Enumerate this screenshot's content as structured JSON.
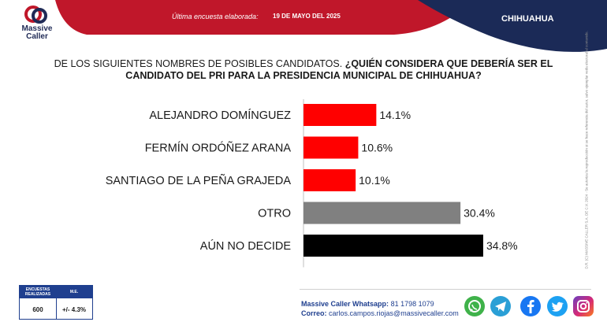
{
  "header": {
    "brand_line1": "Massive",
    "brand_line2": "Caller",
    "survey_label": "Última encuesta elaborada:",
    "survey_date": "19 DE MAYO DEL 2025",
    "state": "CHIHUAHUA"
  },
  "question": {
    "intro": "DE LOS SIGUIENTES NOMBRES DE POSIBLES CANDIDATOS. ",
    "bold": "¿QUIÉN CONSIDERA QUE DEBERÍA SER EL CANDIDATO DEL PRI PARA LA PRESIDENCIA MUNICIPAL DE CHIHUAHUA?"
  },
  "chart_data": {
    "type": "bar",
    "orientation": "horizontal",
    "categories": [
      "ALEJANDRO DOMÍNGUEZ",
      "FERMÍN ORDÓÑEZ ARANA",
      "SANTIAGO DE LA PEÑA GRAJEDA",
      "OTRO",
      "AÚN NO DECIDE"
    ],
    "values": [
      14.1,
      10.6,
      10.1,
      30.4,
      34.8
    ],
    "value_labels": [
      "14.1%",
      "10.6%",
      "10.1%",
      "30.4%",
      "34.8%"
    ],
    "colors": [
      "#ff0000",
      "#ff0000",
      "#ff0000",
      "#808080",
      "#000000"
    ],
    "xlim": [
      0,
      40
    ],
    "grid": false,
    "title": "",
    "xlabel": "",
    "ylabel": ""
  },
  "side_note": "D.R. (C) MASSIVE CALLER S.A. DE C.V. 2024 · Se autoriza la reproducción si se hace referencia del autor, salvo ejemplar veda electoral al contenido.",
  "stats": {
    "col1_header": "ENCUESTAS REALIZADAS",
    "col2_header": "M.E.",
    "col1_value": "600",
    "col2_value": "+/- 4.3%"
  },
  "contact": {
    "whatsapp_label": "Massive Caller Whatsapp:",
    "whatsapp_value": "81 1798 1079",
    "email_label": "Correo:",
    "email_value": "carlos.campos.riojas@massivecaller.com"
  },
  "social_icons": [
    "whatsapp-icon",
    "telegram-icon",
    "facebook-icon",
    "twitter-icon",
    "instagram-icon"
  ],
  "colors": {
    "header_red": "#c0172a",
    "header_navy": "#1b2a57",
    "accent_blue": "#1f3f8f"
  }
}
